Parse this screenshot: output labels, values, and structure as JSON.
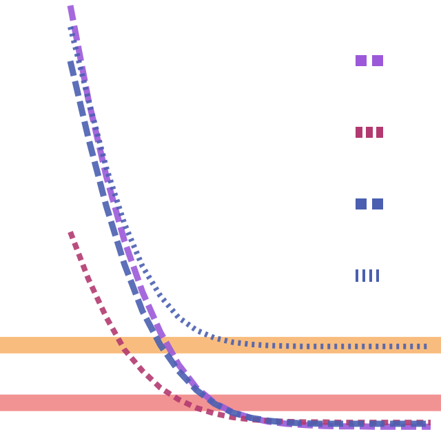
{
  "chart_data": {
    "type": "line",
    "x": [
      0,
      1,
      2,
      3,
      4,
      5,
      6,
      7,
      8,
      9,
      10,
      11,
      12,
      13,
      14,
      15,
      16,
      17,
      18,
      19,
      20
    ],
    "xlim": [
      0,
      20
    ],
    "ylim": [
      0,
      1
    ],
    "grid": false,
    "legend_position": "right",
    "reference_bands": [
      {
        "y": 0.205,
        "color": "#f7b267"
      },
      {
        "y": 0.07,
        "color": "#f08080"
      }
    ],
    "series": [
      {
        "color": "#9b59d9",
        "dash": "long",
        "values": [
          1.0,
          0.78,
          0.6,
          0.45,
          0.33,
          0.235,
          0.16,
          0.105,
          0.07,
          0.048,
          0.035,
          0.026,
          0.021,
          0.018,
          0.016,
          0.015,
          0.015,
          0.014,
          0.014,
          0.014,
          0.014
        ]
      },
      {
        "color": "#b23a70",
        "dash": "medium",
        "values": [
          0.47,
          0.36,
          0.27,
          0.195,
          0.145,
          0.105,
          0.078,
          0.058,
          0.045,
          0.036,
          0.031,
          0.028,
          0.026,
          0.025,
          0.025,
          0.024,
          0.024,
          0.024,
          0.024,
          0.024,
          0.024
        ]
      },
      {
        "color": "#4a5fb0",
        "dash": "long",
        "values": [
          0.87,
          0.69,
          0.53,
          0.395,
          0.285,
          0.205,
          0.145,
          0.1,
          0.068,
          0.047,
          0.035,
          0.028,
          0.024,
          0.022,
          0.021,
          0.021,
          0.021,
          0.021,
          0.021,
          0.021,
          0.021
        ]
      },
      {
        "color": "#4a5fb0",
        "dash": "dotted",
        "values": [
          0.95,
          0.78,
          0.62,
          0.49,
          0.39,
          0.32,
          0.27,
          0.24,
          0.222,
          0.212,
          0.207,
          0.204,
          0.203,
          0.202,
          0.202,
          0.202,
          0.202,
          0.202,
          0.202,
          0.202,
          0.202
        ]
      }
    ]
  }
}
